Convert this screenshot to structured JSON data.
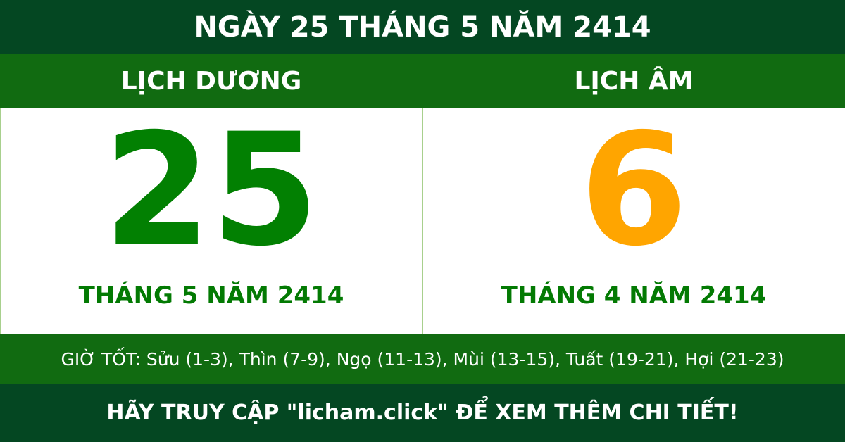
{
  "header": {
    "title": "NGÀY 25 THÁNG 5 NĂM 2414"
  },
  "solar": {
    "label": "LỊCH DƯƠNG",
    "day": "25",
    "month_year": "THÁNG 5 NĂM 2414"
  },
  "lunar": {
    "label": "LỊCH ÂM",
    "day": "6",
    "month_year": "THÁNG 4 NĂM 2414"
  },
  "good_hours": "GIỜ TỐT: Sửu (1-3), Thìn (7-9), Ngọ (11-13), Mùi (13-15), Tuất (19-21), Hợi (21-23)",
  "footer": "HÃY TRUY CẬP \"licham.click\" ĐỂ XEM THÊM CHI TIẾT!",
  "colors": {
    "dark_green": "#044722",
    "band_green": "#116b11",
    "solar_day": "#028002",
    "lunar_day": "#ffa500"
  }
}
